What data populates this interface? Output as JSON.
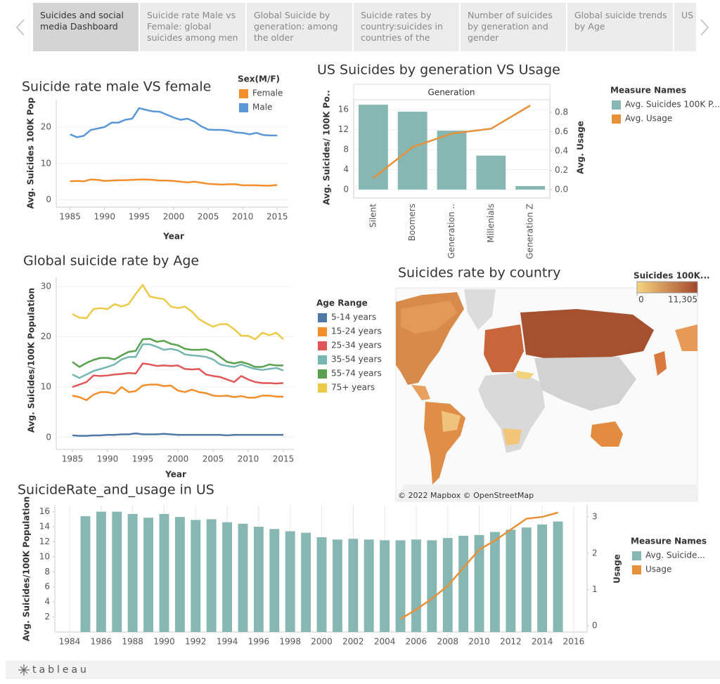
{
  "tabs": [
    "Suicides and social media Dashboard",
    "Suicide rate Male vs Female: global suicides among men",
    "Global Suicide by generation: among the older generations are",
    "Suicide rates by country:suicides in countries of the",
    "Number of suicides by generation and gender",
    "Global suicide trends by Age",
    "US gen sui"
  ],
  "footer": {
    "brand": "tableau"
  },
  "chart_data": [
    {
      "type": "line",
      "title": "Suicide rate male VS female",
      "xlabel": "Year",
      "ylabel": "Avg. Suicides 100K Pop",
      "legend_title": "Sex(M/F)",
      "grid": "y",
      "x": [
        1985,
        1986,
        1987,
        1988,
        1989,
        1990,
        1991,
        1992,
        1993,
        1994,
        1995,
        1996,
        1997,
        1998,
        1999,
        2000,
        2001,
        2002,
        2003,
        2004,
        2005,
        2006,
        2007,
        2008,
        2009,
        2010,
        2011,
        2012,
        2013,
        2014,
        2015
      ],
      "xlim": [
        1983,
        2016.6
      ],
      "xticks": [
        1985,
        1990,
        1995,
        2000,
        2005,
        2010,
        2015
      ],
      "ylim": [
        -2,
        27.5
      ],
      "yticks": [
        0,
        10,
        20
      ],
      "series": [
        {
          "name": "Female",
          "color": "#f28e2b",
          "values": [
            5.1,
            5.2,
            5.1,
            5.6,
            5.5,
            5.2,
            5.3,
            5.4,
            5.4,
            5.5,
            5.6,
            5.6,
            5.5,
            5.3,
            5.3,
            5.2,
            5.0,
            4.8,
            5.0,
            4.7,
            4.4,
            4.3,
            4.2,
            4.3,
            4.3,
            4.0,
            4.0,
            4.0,
            3.9,
            3.9,
            4.1
          ]
        },
        {
          "name": "Male",
          "color": "#5b97d6",
          "values": [
            18,
            17.2,
            17.6,
            19.2,
            19.6,
            20,
            21.2,
            21.2,
            22,
            22.3,
            25.2,
            24.7,
            24.3,
            24.2,
            23.4,
            22.6,
            22,
            22.3,
            21.5,
            20.2,
            19.3,
            19.2,
            19.2,
            19,
            18.5,
            18.4,
            18,
            18.4,
            17.8,
            17.7,
            17.7
          ]
        }
      ]
    },
    {
      "type": "combo",
      "title": "US Suicides by generation VS Usage",
      "x_header": "Generation",
      "ylabel": "Avg. Suicides/ 100K Po..",
      "y2label": "Avg. Usage",
      "legend_title": "Measure Names",
      "grid": "y",
      "categories": [
        "Silent",
        "Boomers",
        "Generation ..",
        "Millenials",
        "Generation Z"
      ],
      "ylim": [
        -1.7,
        18
      ],
      "yticks": [
        0,
        4,
        8,
        12,
        16
      ],
      "y2lim": [
        -0.087,
        0.93
      ],
      "y2ticks": [
        {
          "value": 0,
          "label": "0.0"
        },
        0.2,
        0.4,
        0.6,
        0.8
      ],
      "series": [
        {
          "name": "Avg. Suicides 100K P...",
          "color": "#86b7b2",
          "values": [
            17,
            15.6,
            11.8,
            6.8,
            0.7
          ]
        },
        {
          "name": "Avg. Usage",
          "color": "#e8913b",
          "axis": "y2",
          "values": [
            0.12,
            0.44,
            0.58,
            0.63,
            0.87
          ]
        }
      ]
    },
    {
      "type": "line",
      "title": "Global suicide rate by Age",
      "xlabel": "Year",
      "ylabel": "Avg. Suicides/100K Population",
      "legend_title": "Age Range",
      "grid": "y",
      "x": [
        1985,
        1986,
        1987,
        1988,
        1989,
        1990,
        1991,
        1992,
        1993,
        1994,
        1995,
        1996,
        1997,
        1998,
        1999,
        2000,
        2001,
        2002,
        2003,
        2004,
        2005,
        2006,
        2007,
        2008,
        2009,
        2010,
        2011,
        2012,
        2013,
        2014,
        2015
      ],
      "xlim": [
        1982.7,
        2016.5
      ],
      "xticks": [
        1985,
        1990,
        1995,
        2000,
        2005,
        2010,
        2015
      ],
      "ylim": [
        -2.4,
        31.8
      ],
      "yticks": [
        0,
        10,
        20,
        30
      ],
      "series": [
        {
          "name": "5-14 years",
          "color": "#4e79a7",
          "values": [
            0.4,
            0.3,
            0.3,
            0.4,
            0.4,
            0.5,
            0.5,
            0.6,
            0.6,
            0.8,
            0.6,
            0.6,
            0.6,
            0.7,
            0.6,
            0.5,
            0.5,
            0.5,
            0.5,
            0.5,
            0.5,
            0.5,
            0.4,
            0.5,
            0.5,
            0.5,
            0.5,
            0.5,
            0.5,
            0.5,
            0.5
          ]
        },
        {
          "name": "15-24 years",
          "color": "#f28e2b",
          "values": [
            8.3,
            8,
            7.4,
            8.5,
            9,
            9,
            8.7,
            10,
            9,
            9.2,
            10.3,
            10.5,
            10.5,
            10.2,
            10.3,
            9.3,
            9,
            9.5,
            9,
            8.8,
            8.3,
            8.2,
            8.3,
            8,
            8.2,
            7.9,
            7.9,
            8.3,
            8.3,
            8.1,
            8.1
          ]
        },
        {
          "name": "25-34 years",
          "color": "#e15759",
          "values": [
            10,
            10.5,
            11,
            12.3,
            12.2,
            12.3,
            12.5,
            12.6,
            12.8,
            12.7,
            14.7,
            14.5,
            14.2,
            14.3,
            14.2,
            14.3,
            13.6,
            13.5,
            13.6,
            12.5,
            12.2,
            12,
            11.5,
            11,
            12.2,
            11.5,
            11,
            10.8,
            10.8,
            10.7,
            10.8
          ]
        },
        {
          "name": "35-54 years",
          "color": "#76b7b2",
          "values": [
            12.5,
            11.8,
            12.5,
            13.2,
            13.6,
            14,
            14.5,
            15.5,
            16,
            16,
            18.5,
            18.5,
            18,
            17.4,
            17.6,
            17.3,
            16.5,
            16.3,
            16.2,
            16,
            15.5,
            14.5,
            14.2,
            14,
            14.5,
            14,
            13.6,
            13.4,
            13.6,
            13.8,
            13.3
          ]
        },
        {
          "name": "55-74 years",
          "color": "#59a14f",
          "values": [
            15,
            14,
            14.8,
            15.4,
            15.8,
            15.8,
            15.5,
            16.3,
            17,
            17.2,
            19.5,
            19.6,
            19,
            19.2,
            18.6,
            18.3,
            17.6,
            17.4,
            17.4,
            17.5,
            17,
            16,
            15,
            14.7,
            15,
            14.6,
            14,
            14,
            14.5,
            14.3,
            14.3
          ]
        },
        {
          "name": "75+ years",
          "color": "#edc948",
          "values": [
            24.5,
            23.8,
            23.7,
            25.5,
            25.7,
            25.5,
            26.5,
            26,
            26.5,
            28.5,
            30.3,
            28,
            27.7,
            27.5,
            26,
            25.7,
            26,
            25,
            23.5,
            22.7,
            22,
            22.5,
            22.5,
            21.5,
            20.2,
            20.2,
            19.5,
            20.8,
            20.3,
            20.8,
            19.5
          ]
        }
      ]
    },
    {
      "type": "map",
      "title": "Suicides rate by country",
      "legend_title": "Suicides 100K...",
      "color_scale": {
        "colors": [
          "#f7d67e",
          "#a4462c"
        ],
        "ticks": [
          0,
          {
            "value": 11305,
            "label": "11,305"
          }
        ]
      },
      "attribution": "© 2022 Mapbox  © OpenStreetMap"
    },
    {
      "type": "combo",
      "title": "SuicideRate_and_usage in US",
      "ylabel": "Avg. Suicides/100K Population",
      "y2label": "Usage",
      "legend_title": "Measure Names",
      "grid": "x",
      "x": [
        1985,
        1986,
        1987,
        1988,
        1989,
        1990,
        1991,
        1992,
        1993,
        1994,
        1995,
        1996,
        1997,
        1998,
        1999,
        2000,
        2001,
        2002,
        2003,
        2004,
        2005,
        2006,
        2007,
        2008,
        2009,
        2010,
        2011,
        2012,
        2013,
        2014,
        2015
      ],
      "xlim": [
        1983.06,
        2016.85
      ],
      "xticks": [
        1984,
        1986,
        1988,
        1990,
        1992,
        1994,
        1996,
        1998,
        2000,
        2002,
        2004,
        2006,
        2008,
        2010,
        2012,
        2014,
        2016
      ],
      "ylim": [
        0,
        16.9
      ],
      "yticks": [
        2,
        4,
        6,
        8,
        10,
        12,
        14,
        16
      ],
      "y2lim": [
        -0.17,
        3.33
      ],
      "y2ticks": [
        0,
        1,
        2,
        3
      ],
      "series": [
        {
          "name": "Avg. Suicide...",
          "color": "#86b7b2",
          "values": [
            15.4,
            16,
            16,
            15.7,
            15.2,
            15.7,
            15.3,
            14.9,
            15,
            14.6,
            14.4,
            14,
            13.7,
            13.4,
            13.2,
            12.6,
            12.3,
            12.4,
            12.3,
            12.2,
            12.2,
            12.3,
            12.2,
            12.5,
            12.8,
            12.9,
            13.3,
            13.6,
            13.9,
            14.3,
            14.7
          ]
        },
        {
          "name": "Usage",
          "color": "#e8913b",
          "axis": "y2",
          "values": [
            null,
            null,
            null,
            null,
            null,
            null,
            null,
            null,
            null,
            null,
            null,
            null,
            null,
            null,
            null,
            null,
            null,
            null,
            null,
            null,
            0.19,
            0.45,
            0.75,
            1.1,
            1.6,
            2.1,
            2.35,
            2.65,
            2.95,
            3.0,
            3.12
          ]
        }
      ]
    }
  ]
}
